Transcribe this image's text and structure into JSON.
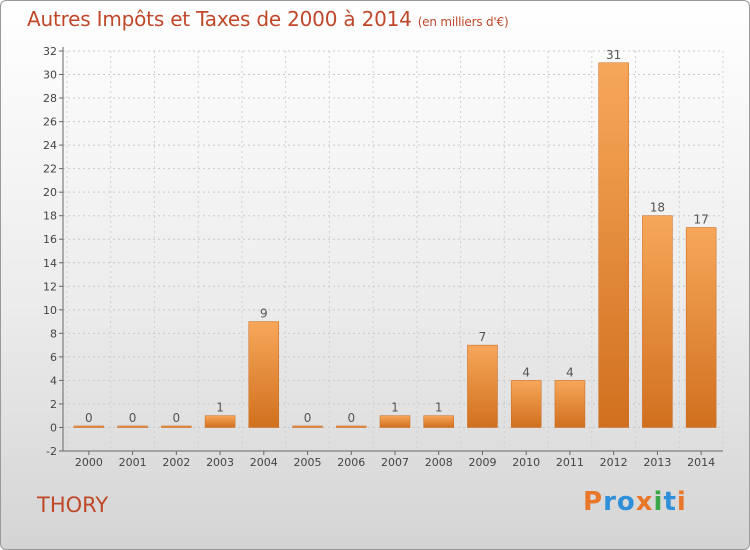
{
  "title": "Autres Impôts et Taxes de 2000 à 2014",
  "subtitle": "(en milliers d'€)",
  "commune": "THORY",
  "logo": {
    "text": "Proxiti",
    "letter_colors": [
      "#e8772a",
      "#2f8fd8",
      "#2f8fd8",
      "#e8772a",
      "#3aa84a",
      "#2f8fd8",
      "#e8772a"
    ]
  },
  "colors": {
    "title": "#c0482a",
    "bar_light": "#f7a75a",
    "bar_dark": "#d0701e",
    "label": "#555555"
  },
  "chart_data": {
    "type": "bar",
    "title": "Autres Impôts et Taxes de 2000 à 2014",
    "subtitle": "(en milliers d'€)",
    "xlabel": "",
    "ylabel": "",
    "categories": [
      "2000",
      "2001",
      "2002",
      "2003",
      "2004",
      "2005",
      "2006",
      "2007",
      "2008",
      "2009",
      "2010",
      "2011",
      "2012",
      "2013",
      "2014"
    ],
    "values": [
      0,
      0,
      0,
      1,
      9,
      0,
      0,
      1,
      1,
      7,
      4,
      4,
      31,
      18,
      17
    ],
    "ylim": [
      -2,
      32
    ],
    "yticks": [
      -2,
      0,
      2,
      4,
      6,
      8,
      10,
      12,
      14,
      16,
      18,
      20,
      22,
      24,
      26,
      28,
      30,
      32
    ],
    "grid": true,
    "legend": "none"
  }
}
